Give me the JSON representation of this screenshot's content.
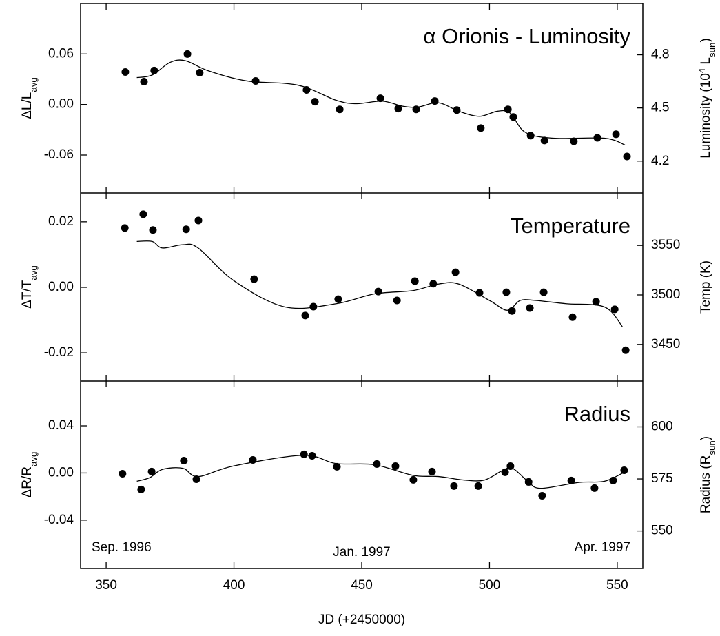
{
  "chart_data": [
    {
      "type": "scatter",
      "title": "α Orionis - Luminosity",
      "ylabel": [
        "ΔL/L",
        "avg"
      ],
      "ylabel_shift": [
        "base",
        "sub"
      ],
      "y2label": [
        "Luminosity (10",
        "4",
        " L",
        "sun",
        ")"
      ],
      "y2label_shift": [
        "base",
        "super",
        "base",
        "sub",
        "base"
      ],
      "color": "#000000",
      "x": [
        357.5,
        364.8,
        368.8,
        381.8,
        386.6,
        408.5,
        428.4,
        431.7,
        441.4,
        457.3,
        464.3,
        471.3,
        478.6,
        487.2,
        496.6,
        507.2,
        509.3,
        516.1,
        521.5,
        533.0,
        542.2,
        549.5,
        553.8
      ],
      "values": [
        0.0386,
        0.0271,
        0.0403,
        0.06,
        0.0378,
        0.028,
        0.0173,
        0.0033,
        -0.0058,
        0.0074,
        -0.0049,
        -0.0058,
        0.0041,
        -0.0066,
        -0.028,
        -0.0058,
        -0.0148,
        -0.037,
        -0.0427,
        -0.0436,
        -0.0395,
        -0.0353,
        -0.0616
      ],
      "fit": {
        "x": [
          362,
          368,
          375,
          381,
          390,
          405,
          425,
          440,
          448,
          458,
          466,
          472,
          480,
          488,
          496,
          503,
          508,
          514,
          525,
          545,
          553
        ],
        "values": [
          0.032,
          0.035,
          0.05,
          0.052,
          0.04,
          0.028,
          0.023,
          0.005,
          0.001,
          0.004,
          -0.002,
          -0.003,
          0.002,
          -0.008,
          -0.014,
          -0.008,
          -0.01,
          -0.033,
          -0.04,
          -0.04,
          -0.048
        ]
      },
      "xlim": [
        340,
        560
      ],
      "ylim": [
        -0.105,
        0.12
      ],
      "yticks": [
        0.06,
        {
          "value": 0,
          "label": "0.00"
        },
        -0.06
      ],
      "y2lim": [
        4.02,
        5.09
      ],
      "y2ticks": [
        4.8,
        4.5,
        4.2
      ]
    },
    {
      "type": "scatter",
      "title": "Temperature",
      "ylabel": [
        "ΔT/T",
        "avg"
      ],
      "ylabel_shift": [
        "base",
        "sub"
      ],
      "y2label": [
        "Temp (K)"
      ],
      "y2label_shift": [
        "base"
      ],
      "color": "#000000",
      "x": [
        357.3,
        364.5,
        368.3,
        381.3,
        386.1,
        407.9,
        427.9,
        431.1,
        440.8,
        456.5,
        463.8,
        470.8,
        478.0,
        486.7,
        496.1,
        506.6,
        508.8,
        515.8,
        521.2,
        532.5,
        541.7,
        549.0,
        553.3
      ],
      "values": [
        0.0181,
        0.0223,
        0.0175,
        0.0177,
        0.0204,
        0.0025,
        -0.0086,
        -0.0059,
        -0.0036,
        -0.0013,
        -0.004,
        0.0019,
        0.0011,
        0.0046,
        -0.0017,
        -0.0015,
        -0.0072,
        -0.0063,
        -0.0015,
        -0.0091,
        -0.0044,
        -0.0067,
        -0.0192
      ],
      "fit": {
        "x": [
          362,
          368,
          372,
          380,
          386,
          400,
          420,
          440,
          455,
          470,
          480,
          488,
          500,
          507,
          512,
          518,
          530,
          545,
          552
        ],
        "values": [
          0.014,
          0.014,
          0.012,
          0.013,
          0.012,
          0.002,
          -0.006,
          -0.005,
          -0.002,
          -0.001,
          0.001,
          0.001,
          -0.004,
          -0.007,
          -0.004,
          -0.004,
          -0.005,
          -0.006,
          -0.012
        ]
      },
      "xlim": [
        340,
        560
      ],
      "ylim": [
        -0.0286,
        0.0288
      ],
      "yticks": [
        0.02,
        {
          "value": 0,
          "label": "0.00"
        },
        -0.02
      ],
      "y2lim": [
        3413,
        3603
      ],
      "y2ticks": [
        3550,
        3500,
        3450
      ]
    },
    {
      "type": "scatter",
      "title": "Radius",
      "ylabel": [
        "ΔR/R",
        "avg"
      ],
      "ylabel_shift": [
        "base",
        "sub"
      ],
      "y2label": [
        "Radius (R",
        "sun",
        ")"
      ],
      "y2label_shift": [
        "base",
        "sub",
        "base"
      ],
      "color": "#000000",
      "x": [
        356.4,
        363.7,
        367.8,
        380.4,
        385.3,
        407.4,
        427.4,
        430.6,
        440.3,
        455.9,
        463.2,
        470.2,
        477.5,
        486.1,
        495.6,
        506.1,
        508.2,
        515.3,
        520.6,
        532.0,
        541.1,
        548.4,
        552.7
      ],
      "values": [
        -0.0006,
        -0.014,
        0.0012,
        0.0105,
        -0.0053,
        0.0111,
        0.0158,
        0.0146,
        0.0053,
        0.0076,
        0.0058,
        -0.0058,
        0.0012,
        -0.0111,
        -0.0111,
        0.0006,
        0.0058,
        -0.0076,
        -0.0193,
        -0.0064,
        -0.0128,
        -0.0064,
        0.0023
      ],
      "fit": {
        "x": [
          362,
          367,
          372,
          380,
          386,
          400,
          427,
          440,
          455,
          470,
          480,
          490,
          498,
          505,
          509,
          515,
          520,
          535,
          545,
          553
        ],
        "values": [
          -0.007,
          -0.004,
          0.003,
          0.004,
          -0.003,
          0.006,
          0.015,
          0.008,
          0.007,
          -0.002,
          -0.003,
          -0.006,
          -0.006,
          0.002,
          0.004,
          -0.007,
          -0.013,
          -0.008,
          -0.007,
          0.001
        ]
      },
      "xlim": [
        340,
        560
      ],
      "ylim": [
        -0.081,
        0.078
      ],
      "yticks": [
        0.04,
        {
          "value": 0,
          "label": "0.00"
        },
        -0.04
      ],
      "y2lim": [
        532,
        622
      ],
      "y2ticks": [
        600,
        575,
        550
      ],
      "xticks": [
        350,
        400,
        450,
        500,
        550
      ],
      "xlabel": "JD (+2450000)",
      "annotations": [
        "Sep. 1996",
        "Jan. 1997",
        "Apr. 1997"
      ]
    }
  ]
}
